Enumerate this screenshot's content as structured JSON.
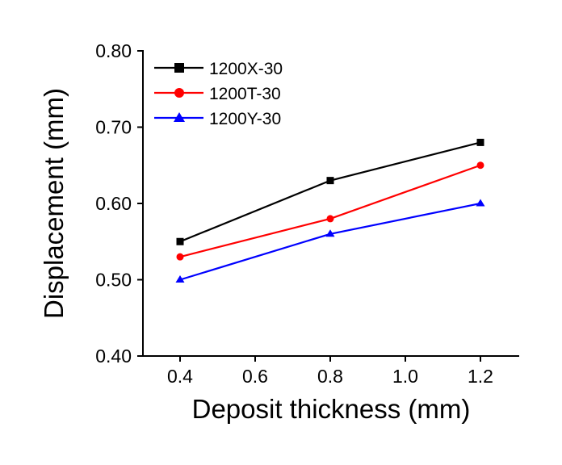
{
  "chart_data": {
    "type": "line",
    "title": "",
    "xlabel": "Deposit thickness (mm)",
    "ylabel": "Displacement (mm)",
    "x": [
      0.4,
      0.8,
      1.2
    ],
    "xlim": [
      0.3,
      1.3
    ],
    "ylim": [
      0.4,
      0.8
    ],
    "xticks": [
      "0.4",
      "0.6",
      "0.8",
      "1.0",
      "1.2"
    ],
    "xtick_values": [
      0.4,
      0.6,
      0.8,
      1.0,
      1.2
    ],
    "yticks": [
      "0.40",
      "0.50",
      "0.60",
      "0.70",
      "0.80"
    ],
    "ytick_values": [
      0.4,
      0.5,
      0.6,
      0.7,
      0.8
    ],
    "grid": false,
    "legend_position": "top-left",
    "series": [
      {
        "name": "1200X-30",
        "values": [
          0.55,
          0.63,
          0.68
        ],
        "color": "#000000",
        "marker": "square"
      },
      {
        "name": "1200T-30",
        "values": [
          0.53,
          0.58,
          0.65
        ],
        "color": "#ff0000",
        "marker": "circle"
      },
      {
        "name": "1200Y-30",
        "values": [
          0.5,
          0.56,
          0.6
        ],
        "color": "#0000ff",
        "marker": "triangle"
      }
    ]
  }
}
